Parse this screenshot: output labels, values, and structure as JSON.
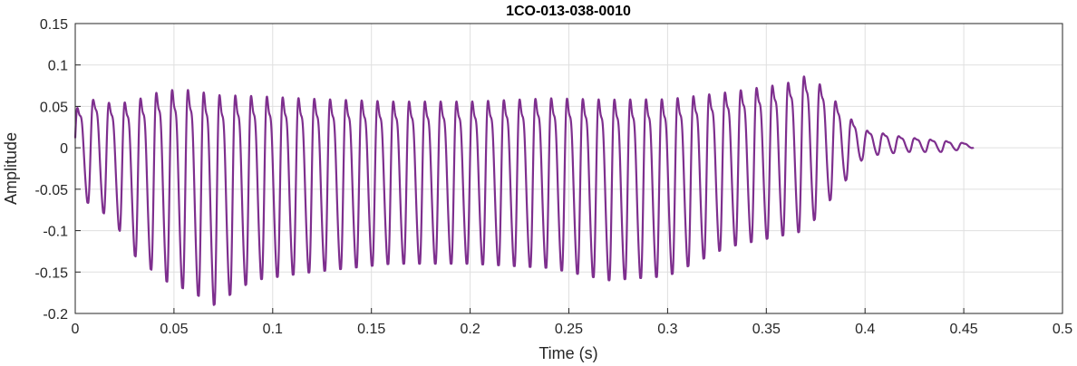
{
  "chart_data": {
    "type": "line",
    "title": "1CO-013-038-0010",
    "xlabel": "Time (s)",
    "ylabel": "Amplitude",
    "xlim": [
      0,
      0.5
    ],
    "ylim": [
      -0.2,
      0.15
    ],
    "grid": true,
    "xticks": [
      0,
      0.05,
      0.1,
      0.15,
      0.2,
      0.25,
      0.3,
      0.35,
      0.4,
      0.45,
      0.5
    ],
    "xtick_labels": [
      "0",
      "0.05",
      "0.1",
      "0.15",
      "0.2",
      "0.25",
      "0.3",
      "0.35",
      "0.4",
      "0.45",
      "0.5"
    ],
    "yticks": [
      0.15,
      0.1,
      0.05,
      0,
      -0.05,
      -0.1,
      -0.15,
      -0.2
    ],
    "ytick_labels": [
      "0.15",
      "0.1",
      "0.05",
      "0",
      "-0.05",
      "-0.1",
      "-0.15",
      "-0.2"
    ],
    "line_color": "#7E2F8E",
    "series": [
      {
        "fundamental_hz": 125,
        "duration_s": 0.455,
        "envelope": {
          "t": [
            0,
            0.01,
            0.02,
            0.03,
            0.045,
            0.06,
            0.07,
            0.09,
            0.12,
            0.16,
            0.2,
            0.24,
            0.27,
            0.3,
            0.33,
            0.36,
            0.37,
            0.38,
            0.39,
            0.4,
            0.42,
            0.44,
            0.455
          ],
          "max": [
            0.06,
            0.075,
            0.07,
            0.08,
            0.098,
            0.1,
            0.095,
            0.09,
            0.085,
            0.08,
            0.08,
            0.085,
            0.085,
            0.085,
            0.09,
            0.1,
            0.11,
            0.09,
            0.05,
            0.025,
            0.015,
            0.01,
            0.005
          ],
          "min": [
            -0.06,
            -0.07,
            -0.09,
            -0.13,
            -0.16,
            -0.175,
            -0.19,
            -0.16,
            -0.15,
            -0.14,
            -0.14,
            -0.145,
            -0.16,
            -0.155,
            -0.12,
            -0.105,
            -0.1,
            -0.07,
            -0.04,
            -0.01,
            -0.005,
            -0.005,
            0
          ]
        }
      }
    ]
  }
}
